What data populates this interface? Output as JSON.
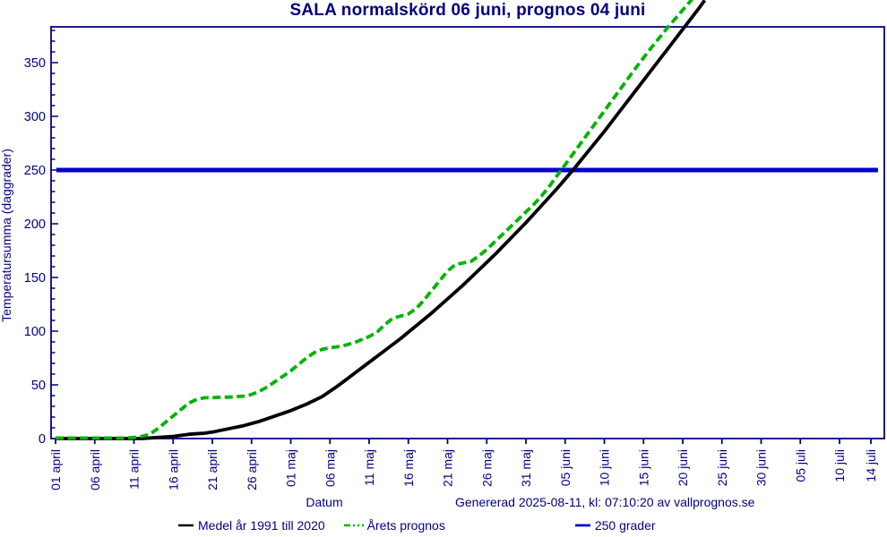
{
  "title": "SALA normalskörd 06 juni, prognos 04 juni",
  "colors": {
    "navy": "#000080",
    "black": "#000000",
    "green": "#00b400",
    "blue": "#0000cc",
    "background": "#ffffff"
  },
  "y_axis": {
    "label": "Temperatursumma (daggrader)",
    "tick_labels": [
      0,
      50,
      100,
      150,
      200,
      250,
      300,
      350
    ],
    "minor_step": 10,
    "max": 380
  },
  "x_axis": {
    "label": "Datum",
    "ticks": [
      {
        "day": 0,
        "label": "01 april"
      },
      {
        "day": 5,
        "label": "06 april"
      },
      {
        "day": 10,
        "label": "11 april"
      },
      {
        "day": 15,
        "label": "16 april"
      },
      {
        "day": 20,
        "label": "21 april"
      },
      {
        "day": 25,
        "label": "26 april"
      },
      {
        "day": 30,
        "label": "01 maj"
      },
      {
        "day": 35,
        "label": "06 maj"
      },
      {
        "day": 40,
        "label": "11 maj"
      },
      {
        "day": 45,
        "label": "16 maj"
      },
      {
        "day": 50,
        "label": "21 maj"
      },
      {
        "day": 55,
        "label": "26 maj"
      },
      {
        "day": 60,
        "label": "31 maj"
      },
      {
        "day": 65,
        "label": "05 juni"
      },
      {
        "day": 70,
        "label": "10 juni"
      },
      {
        "day": 75,
        "label": "15 juni"
      },
      {
        "day": 80,
        "label": "20 juni"
      },
      {
        "day": 85,
        "label": "25 juni"
      },
      {
        "day": 90,
        "label": "30 juni"
      },
      {
        "day": 95,
        "label": "05 juli"
      },
      {
        "day": 100,
        "label": "10 juli"
      },
      {
        "day": 104,
        "label": "14 juli"
      }
    ]
  },
  "footer": {
    "generated": "Genererad 2025-08-11, kl: 07:10:20 av vallprognos.se"
  },
  "legend": {
    "items": [
      {
        "label": "Medel år 1991 till 2020",
        "series": "medel",
        "color": "#000000",
        "style": "solid"
      },
      {
        "label": "Årets prognos",
        "series": "prognos",
        "color": "#00b400",
        "style": "dashed"
      },
      {
        "label": "250 grader",
        "series": "ref",
        "color": "#0000cc",
        "style": "solid"
      }
    ]
  },
  "chart_data": {
    "type": "line",
    "title": "SALA normalskörd 06 juni, prognos 04 juni",
    "xlabel": "Datum",
    "ylabel": "Temperatursumma (daggrader)",
    "x_unit": "days since 01 april",
    "x_range_days": [
      0,
      104
    ],
    "ylim": [
      0,
      380
    ],
    "grid": false,
    "legend_position": "bottom",
    "reference_line": {
      "name": "250 grader",
      "value": 250,
      "color": "#0000cc"
    },
    "series": [
      {
        "name": "Medel år 1991 till 2020",
        "color": "#000000",
        "style": "solid",
        "points": [
          [
            0,
            0
          ],
          [
            4,
            0
          ],
          [
            8,
            0
          ],
          [
            11,
            0
          ],
          [
            13,
            1
          ],
          [
            15,
            2
          ],
          [
            17,
            4
          ],
          [
            19,
            5
          ],
          [
            20,
            6
          ],
          [
            22,
            9
          ],
          [
            24,
            12
          ],
          [
            26,
            16
          ],
          [
            28,
            21
          ],
          [
            30,
            26
          ],
          [
            32,
            32
          ],
          [
            34,
            39
          ],
          [
            36,
            49
          ],
          [
            38,
            60
          ],
          [
            40,
            71
          ],
          [
            42,
            82
          ],
          [
            44,
            93
          ],
          [
            46,
            105
          ],
          [
            48,
            117
          ],
          [
            50,
            130
          ],
          [
            52,
            143
          ],
          [
            54,
            157
          ],
          [
            56,
            171
          ],
          [
            58,
            186
          ],
          [
            60,
            201
          ],
          [
            62,
            217
          ],
          [
            64,
            233
          ],
          [
            66,
            250
          ],
          [
            68,
            268
          ],
          [
            70,
            286
          ],
          [
            72,
            305
          ],
          [
            74,
            324
          ],
          [
            76,
            343
          ],
          [
            78,
            362
          ],
          [
            80,
            381
          ],
          [
            82,
            400
          ],
          [
            82.8,
            408
          ]
        ]
      },
      {
        "name": "Årets prognos",
        "color": "#00b400",
        "style": "dashed",
        "points": [
          [
            0,
            0.5
          ],
          [
            3,
            0.5
          ],
          [
            6,
            0.5
          ],
          [
            9,
            0.5
          ],
          [
            10,
            1
          ],
          [
            11,
            2
          ],
          [
            12,
            4
          ],
          [
            13,
            9
          ],
          [
            14,
            15
          ],
          [
            15,
            21
          ],
          [
            16,
            27
          ],
          [
            17,
            33
          ],
          [
            18,
            36.5
          ],
          [
            19,
            38
          ],
          [
            20,
            38
          ],
          [
            21,
            38.5
          ],
          [
            22,
            38.5
          ],
          [
            23,
            39
          ],
          [
            24,
            39.5
          ],
          [
            25,
            41
          ],
          [
            26,
            44
          ],
          [
            27,
            48
          ],
          [
            28,
            53
          ],
          [
            29,
            58
          ],
          [
            30,
            63
          ],
          [
            31,
            69
          ],
          [
            32,
            75
          ],
          [
            33,
            80
          ],
          [
            34,
            83
          ],
          [
            35,
            84.5
          ],
          [
            36,
            85.5
          ],
          [
            37,
            87
          ],
          [
            38,
            89
          ],
          [
            39,
            92
          ],
          [
            40,
            95
          ],
          [
            41,
            99
          ],
          [
            42,
            106
          ],
          [
            43,
            112
          ],
          [
            44,
            114
          ],
          [
            45,
            116
          ],
          [
            46,
            121
          ],
          [
            47,
            129
          ],
          [
            48,
            138
          ],
          [
            49,
            147
          ],
          [
            50,
            156
          ],
          [
            51,
            162
          ],
          [
            52,
            163.5
          ],
          [
            53,
            165
          ],
          [
            54,
            170
          ],
          [
            55,
            176
          ],
          [
            56,
            183
          ],
          [
            57,
            190
          ],
          [
            58,
            197
          ],
          [
            59,
            204
          ],
          [
            60,
            211
          ],
          [
            61,
            218
          ],
          [
            62,
            226
          ],
          [
            63,
            235
          ],
          [
            64,
            245
          ],
          [
            65,
            255
          ],
          [
            66,
            265
          ],
          [
            68,
            285
          ],
          [
            70,
            305
          ],
          [
            72,
            325
          ],
          [
            74,
            345
          ],
          [
            76,
            364
          ],
          [
            78,
            382
          ],
          [
            80,
            399
          ],
          [
            81.2,
            409
          ]
        ]
      },
      {
        "name": "250 grader",
        "color": "#0000cc",
        "style": "solid",
        "points": [
          [
            0.1,
            250
          ],
          [
            104.9,
            250
          ]
        ]
      }
    ]
  }
}
